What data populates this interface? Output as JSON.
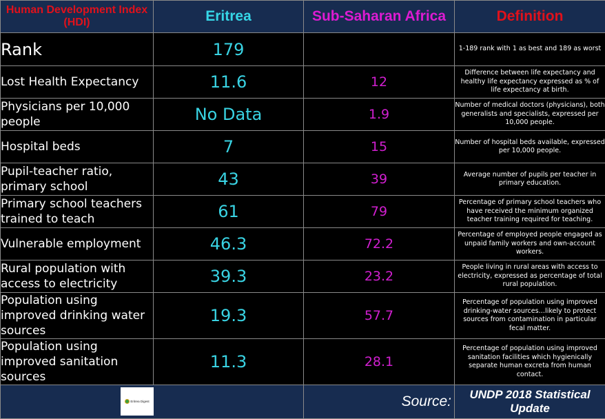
{
  "header": {
    "metric_label": "Human Development Index (HDI)",
    "eritrea_label": "Eritrea",
    "ssa_label": "Sub-Saharan Africa",
    "definition_label": "Definition"
  },
  "rows": [
    {
      "metric": "Rank",
      "eritrea": "179",
      "ssa": "",
      "definition": "1-189 rank with 1 as best and 189 as worst"
    },
    {
      "metric": "Lost Health Expectancy",
      "eritrea": "11.6",
      "ssa": "12",
      "definition": "Difference between life expectancy and healthy life expectancy expressed as % of life expectancy at birth."
    },
    {
      "metric": "Physicians per 10,000 people",
      "eritrea": "No Data",
      "ssa": "1.9",
      "definition": "Number of medical doctors (physicians), both generalists and specialists, expressed per 10,000 people."
    },
    {
      "metric": "Hospital beds",
      "eritrea": "7",
      "ssa": "15",
      "definition": "Number of hospital beds available, expressed per 10,000 people."
    },
    {
      "metric": "Pupil-teacher ratio, primary school",
      "eritrea": "43",
      "ssa": "39",
      "definition": "Average number of pupils per teacher in primary education."
    },
    {
      "metric": "Primary school teachers trained to teach",
      "eritrea": "61",
      "ssa": "79",
      "definition": "Percentage of primary school teachers who have received the minimum organized teacher training required for teaching."
    },
    {
      "metric": "Vulnerable employment",
      "eritrea": "46.3",
      "ssa": "72.2",
      "definition": "Percentage of employed people engaged as unpaid family workers and own-account workers."
    },
    {
      "metric": "Rural population with access to electricity",
      "eritrea": "39.3",
      "ssa": "23.2",
      "definition": "People living in rural areas with access to electricity, expressed as percentage of total rural population."
    },
    {
      "metric": "Population using improved drinking water sources",
      "eritrea": "19.3",
      "ssa": "57.7",
      "definition": "Percentage of population using improved drinking-water sources…likely to protect sources from contamination in particular fecal matter."
    },
    {
      "metric": "Population using improved sanitation sources",
      "eritrea": "11.3",
      "ssa": "28.1",
      "definition": "Percentage of population using improved sanitation facilities which hygienically separate human excreta from human contact."
    }
  ],
  "footer": {
    "logo_text": "Eritrea Digest",
    "source_label": "Source:",
    "source_value": "UNDP 2018 Statistical Update"
  },
  "colors": {
    "header_bg": "#172c50",
    "row_bg": "#000000",
    "metric_header": "#e0111b",
    "eritrea": "#36d6e6",
    "ssa": "#dd1bd2",
    "definition_header": "#e0111b"
  }
}
